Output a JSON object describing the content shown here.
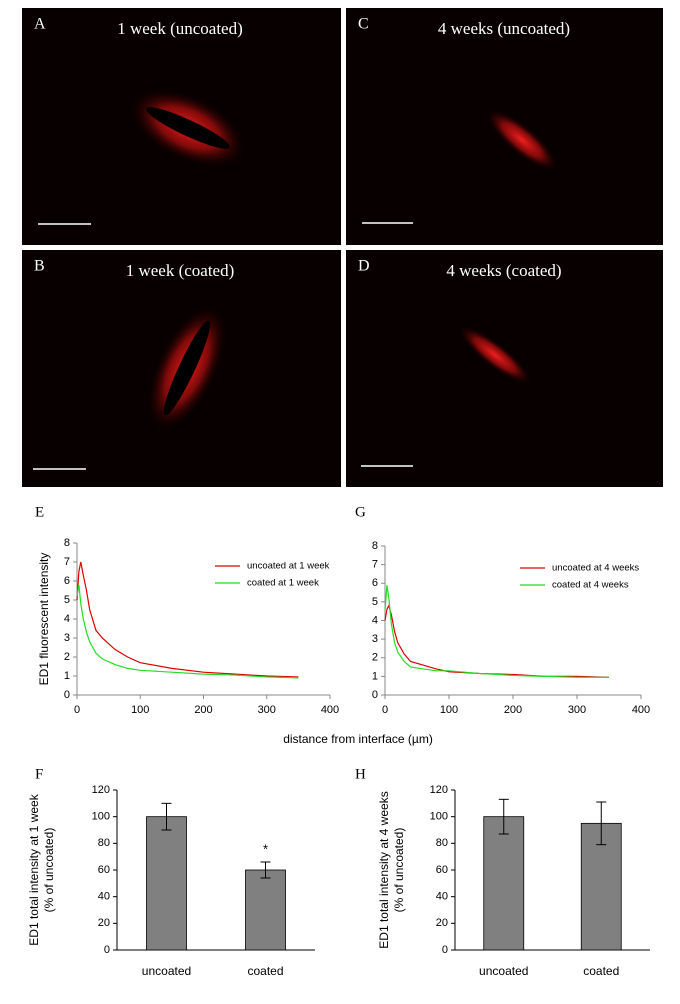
{
  "panels": [
    {
      "letter": "A",
      "title": "1 week (uncoated)"
    },
    {
      "letter": "C",
      "title": "4 weeks (uncoated)"
    },
    {
      "letter": "B",
      "title": "1 week (coated)"
    },
    {
      "letter": "D",
      "title": "4 weeks (coated)"
    }
  ],
  "chart_data": [
    {
      "type": "line",
      "label": "E",
      "ylabel": "ED1 fluorescent intensity",
      "xlabel": "distance from interface (µm)",
      "x": [
        0,
        3,
        6,
        10,
        15,
        20,
        30,
        40,
        60,
        80,
        100,
        150,
        200,
        250,
        300,
        350
      ],
      "series": [
        {
          "name": "uncoated at 1 week",
          "color": "#e00000",
          "values": [
            5,
            6.5,
            7,
            6.3,
            5.5,
            4.5,
            3.4,
            3,
            2.4,
            2,
            1.7,
            1.4,
            1.2,
            1.1,
            1,
            0.95
          ]
        },
        {
          "name": "coated at 1 week",
          "color": "#22dd22",
          "values": [
            5.2,
            5.8,
            4.8,
            4,
            3.3,
            2.8,
            2.2,
            1.9,
            1.6,
            1.4,
            1.3,
            1.2,
            1.1,
            1.05,
            0.95,
            0.9
          ]
        }
      ],
      "xlim": [
        0,
        400
      ],
      "xticks": [
        0,
        100,
        200,
        300,
        400
      ],
      "ylim": [
        0,
        8
      ],
      "yticks": [
        0,
        1,
        2,
        3,
        4,
        5,
        6,
        7,
        8
      ]
    },
    {
      "type": "line",
      "label": "G",
      "x": [
        0,
        3,
        6,
        10,
        15,
        20,
        30,
        40,
        60,
        80,
        100,
        150,
        200,
        250,
        300,
        350
      ],
      "series": [
        {
          "name": "uncoated at 4 weeks",
          "color": "#e00000",
          "values": [
            4,
            4.6,
            4.8,
            4.3,
            3.4,
            2.8,
            2.2,
            1.8,
            1.6,
            1.4,
            1.25,
            1.15,
            1.1,
            1,
            1,
            0.95
          ]
        },
        {
          "name": "coated at 4 weeks",
          "color": "#22dd22",
          "values": [
            4.5,
            5.9,
            5.2,
            3.8,
            2.8,
            2.3,
            1.8,
            1.5,
            1.4,
            1.3,
            1.3,
            1.15,
            1.05,
            1,
            0.95,
            0.95
          ]
        }
      ],
      "xlim": [
        0,
        400
      ],
      "xticks": [
        0,
        100,
        200,
        300,
        400
      ],
      "ylim": [
        0,
        8
      ],
      "yticks": [
        0,
        1,
        2,
        3,
        4,
        5,
        6,
        7,
        8
      ]
    },
    {
      "type": "bar",
      "label": "F",
      "ylabel": [
        "ED1 total intensity at 1 week",
        "(% of uncoated)"
      ],
      "categories": [
        "uncoated",
        "coated"
      ],
      "values": [
        100,
        60
      ],
      "errors": [
        10,
        6
      ],
      "color": "#808080",
      "annotation": "*",
      "ylim": [
        0,
        120
      ],
      "yticks": [
        0,
        20,
        40,
        60,
        80,
        100,
        120
      ]
    },
    {
      "type": "bar",
      "label": "H",
      "ylabel": [
        "ED1 total intensity at 4 weeks",
        "(% of uncoated)"
      ],
      "categories": [
        "uncoated",
        "coated"
      ],
      "values": [
        100,
        95
      ],
      "errors": [
        13,
        16
      ],
      "color": "#808080",
      "ylim": [
        0,
        120
      ],
      "yticks": [
        0,
        20,
        40,
        60,
        80,
        100,
        120
      ]
    }
  ]
}
